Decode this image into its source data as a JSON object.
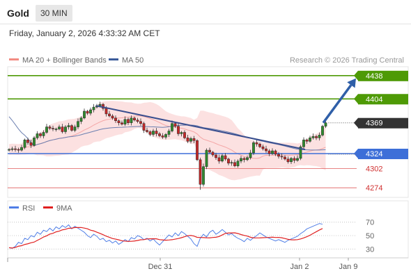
{
  "header": {
    "instrument": "Gold",
    "timeframe": "30 MIN",
    "timestamp": "Friday, January 2, 2026 4:33:32 AM CET"
  },
  "legend": {
    "items": [
      {
        "name": "MA 20 + Bollinger Bands",
        "color": "#f28b82"
      },
      {
        "name": "MA 50",
        "color": "#3b5b9a"
      }
    ],
    "credit": "Research © 2026 Trading Central"
  },
  "colors": {
    "resistance": "#4e9a06",
    "support": "#3d6fd8",
    "weak": "#e05a5a",
    "arrow": "#2f5fa8",
    "candle_up": "#2e8b2e",
    "candle_down": "#c62828",
    "band": "#fbd9d9"
  },
  "chart_data": {
    "type": "candlestick",
    "ylim": [
      4262,
      4450
    ],
    "x_ticks": [
      "Dec 31",
      "Jan 2",
      "Jan 9"
    ],
    "last_price": 4369,
    "levels": [
      {
        "value": 4438,
        "label": "4438",
        "type": "resistance"
      },
      {
        "value": 4404,
        "label": "4404",
        "type": "resistance"
      },
      {
        "value": 4324,
        "label": "4324",
        "type": "support"
      },
      {
        "value": 4302,
        "label": "4302",
        "type": "weak"
      },
      {
        "value": 4274,
        "label": "4274",
        "type": "weak"
      }
    ],
    "close": [
      4330,
      4331,
      4330,
      4329,
      4333,
      4344,
      4340,
      4336,
      4347,
      4353,
      4350,
      4355,
      4363,
      4361,
      4360,
      4360,
      4363,
      4356,
      4363,
      4365,
      4358,
      4363,
      4371,
      4376,
      4386,
      4383,
      4388,
      4392,
      4394,
      4396,
      4390,
      4382,
      4379,
      4376,
      4372,
      4369,
      4367,
      4374,
      4369,
      4376,
      4373,
      4371,
      4368,
      4358,
      4356,
      4352,
      4357,
      4353,
      4350,
      4348,
      4352,
      4357,
      4368,
      4364,
      4353,
      4355,
      4347,
      4342,
      4346,
      4343,
      4315,
      4279,
      4305,
      4329,
      4326,
      4322,
      4318,
      4313,
      4321,
      4316,
      4310,
      4311,
      4306,
      4313,
      4317,
      4315,
      4318,
      4325,
      4340,
      4338,
      4334,
      4331,
      4328,
      4324,
      4328,
      4323,
      4320,
      4319,
      4316,
      4312,
      4317,
      4314,
      4317,
      4334,
      4344,
      4342,
      4347,
      4349,
      4347,
      4351,
      4364,
      4369
    ],
    "trendline": {
      "from": [
        138,
        4394
      ],
      "to": [
        438,
        4330
      ]
    },
    "target_arrow": {
      "from": [
        464,
        4369
      ],
      "to": [
        511,
        4434
      ]
    },
    "rsi": {
      "levels": [
        70,
        50,
        30
      ],
      "legend": [
        {
          "name": "RSI",
          "color": "#4f7ee6"
        },
        {
          "name": "9MA",
          "color": "#e02020"
        }
      ],
      "rsi_values": [
        32,
        31,
        34,
        40,
        38,
        46,
        44,
        50,
        48,
        55,
        52,
        58,
        56,
        61,
        57,
        63,
        60,
        65,
        62,
        66,
        60,
        64,
        61,
        58,
        55,
        50,
        47,
        52,
        49,
        44,
        46,
        41,
        43,
        39,
        42,
        37,
        40,
        44,
        41,
        47,
        45,
        50,
        48,
        44,
        46,
        42,
        45,
        40,
        36,
        41,
        46,
        51,
        48,
        54,
        50,
        56,
        53,
        49,
        45,
        38,
        34,
        46,
        52,
        48,
        55,
        58,
        52,
        55,
        59,
        55,
        51,
        53,
        49,
        46,
        44,
        41,
        46,
        43,
        47,
        50,
        54,
        51,
        48,
        46,
        44,
        42,
        44,
        42,
        40,
        43,
        45,
        47,
        49,
        53,
        56,
        60,
        62,
        64,
        66,
        68,
        67
      ]
    }
  }
}
